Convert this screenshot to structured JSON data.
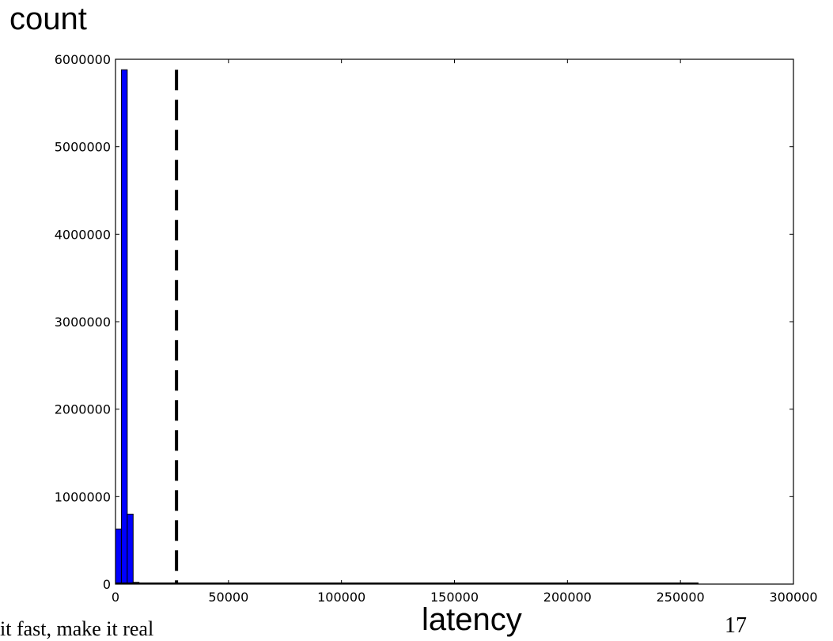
{
  "chart_data": {
    "type": "bar",
    "title": "",
    "ylabel": "count",
    "xlabel": "latency",
    "xlim": [
      0,
      300000
    ],
    "ylim": [
      0,
      6000000
    ],
    "grid": false,
    "bin_width": 2600,
    "bins": [
      {
        "x_start": 0,
        "value": 630000
      },
      {
        "x_start": 2600,
        "value": 5880000
      },
      {
        "x_start": 5200,
        "value": 800000
      },
      {
        "x_start": 7800,
        "value": 20000
      },
      {
        "x_start": 10400,
        "value": 5000
      }
    ],
    "reference_line": {
      "x": 27000,
      "style": "dashed"
    },
    "x_ticks": [
      0,
      50000,
      100000,
      150000,
      200000,
      250000,
      300000
    ],
    "x_tick_labels": [
      "0",
      "50000",
      "100000",
      "150000",
      "200000",
      "250000",
      "300000"
    ],
    "y_ticks": [
      0,
      1000000,
      2000000,
      3000000,
      4000000,
      5000000,
      6000000
    ],
    "y_tick_labels": [
      "0",
      "1000000",
      "2000000",
      "3000000",
      "4000000",
      "5000000",
      "6000000"
    ],
    "bar_color": "#0000ff"
  },
  "slide": {
    "footer_text": "it fast, make it real",
    "page_number": "17"
  }
}
